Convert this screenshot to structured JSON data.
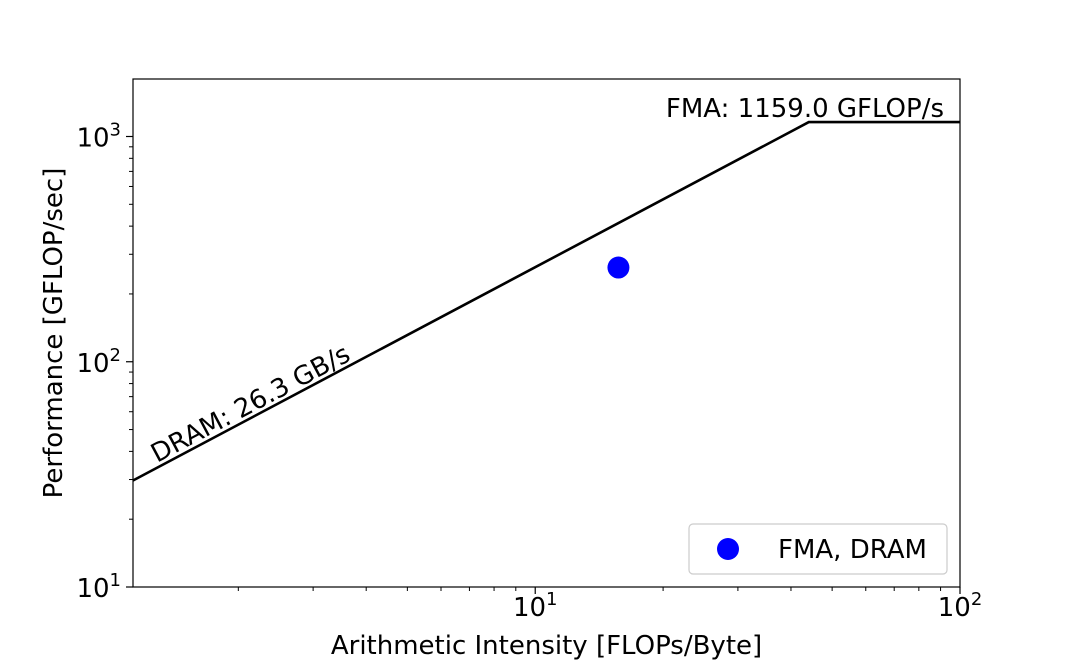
{
  "chart_data": {
    "type": "line",
    "xlabel": "Arithmetic Intensity [FLOPs/Byte]",
    "ylabel": "Performance [GFLOP/sec]",
    "x_scale": "log",
    "y_scale": "log",
    "xlim": [
      1.13,
      100
    ],
    "ylim": [
      10,
      1800
    ],
    "x_ticks": [
      {
        "value": 10,
        "base": "10",
        "exp": "1"
      },
      {
        "value": 100,
        "base": "10",
        "exp": "2"
      }
    ],
    "y_ticks": [
      {
        "value": 10,
        "base": "10",
        "exp": "1"
      },
      {
        "value": 100,
        "base": "10",
        "exp": "2"
      },
      {
        "value": 1000,
        "base": "10",
        "exp": "3"
      }
    ],
    "grid": false,
    "legend_position": "bottom-right",
    "roofline": {
      "color": "#000000",
      "points": [
        {
          "x": 1.13,
          "y": 29.7
        },
        {
          "x": 44.07,
          "y": 1159.0
        },
        {
          "x": 100,
          "y": 1159.0
        }
      ]
    },
    "annotations": {
      "bandwidth_label": "DRAM: 26.3 GB/s",
      "peak_label": "FMA: 1159.0 GFLOP/s"
    },
    "series": [
      {
        "name": "FMA, DRAM",
        "type": "scatter",
        "color": "#0000ff",
        "points": [
          {
            "x": 15.7,
            "y": 262
          }
        ]
      }
    ]
  }
}
